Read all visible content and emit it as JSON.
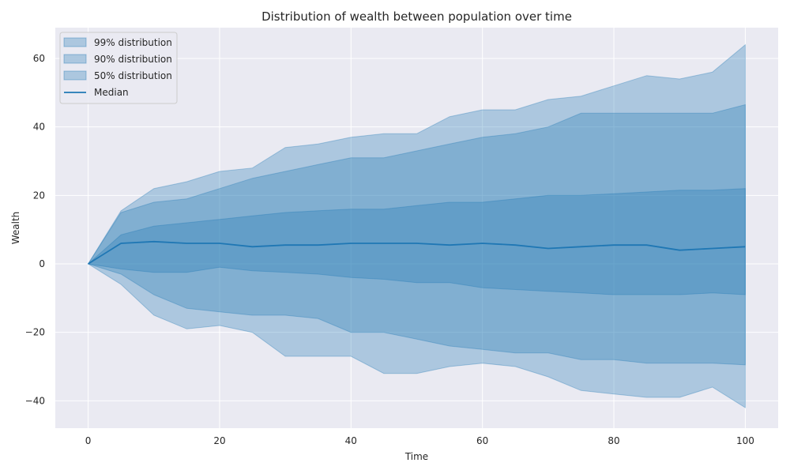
{
  "chart_data": {
    "type": "area",
    "title": "Distribution of wealth between population over time",
    "xlabel": "Time",
    "ylabel": "Wealth",
    "xlim": [
      -5,
      105
    ],
    "ylim": [
      -48,
      69
    ],
    "xticks": [
      0,
      20,
      40,
      60,
      80,
      100
    ],
    "yticks": [
      -40,
      -20,
      0,
      20,
      40,
      60
    ],
    "ytick_labels": [
      "−40",
      "−20",
      "0",
      "20",
      "40",
      "60"
    ],
    "grid": true,
    "legend_position": "top-left",
    "colors": {
      "plot_background": "#eaeaf2",
      "grid": "#ffffff",
      "band": "#1f77b4",
      "median": "#1f77b4",
      "band_opacity": 0.3
    },
    "x": [
      0,
      5,
      10,
      15,
      20,
      25,
      30,
      35,
      40,
      45,
      50,
      55,
      60,
      65,
      70,
      75,
      80,
      85,
      90,
      95,
      100
    ],
    "series": [
      {
        "name": "99% distribution",
        "upper": [
          0,
          15.5,
          22,
          24,
          27,
          28,
          34,
          35,
          37,
          38,
          38,
          43,
          45,
          45,
          48,
          49,
          52,
          55,
          54,
          56,
          64
        ],
        "lower": [
          0,
          -6,
          -15,
          -19,
          -18,
          -20,
          -27,
          -27,
          -27,
          -32,
          -32,
          -30,
          -29,
          -30,
          -33,
          -37,
          -38,
          -39,
          -39,
          -36,
          -42
        ]
      },
      {
        "name": "90% distribution",
        "upper": [
          0,
          15,
          18,
          19,
          22,
          25,
          27,
          29,
          31,
          31,
          33,
          35,
          37,
          38,
          40,
          44,
          44,
          44,
          44,
          44,
          46.5
        ],
        "lower": [
          0,
          -3,
          -9,
          -13,
          -14,
          -15,
          -15,
          -16,
          -20,
          -20,
          -22,
          -24,
          -25,
          -26,
          -26,
          -28,
          -28,
          -29,
          -29,
          -29,
          -29.5
        ]
      },
      {
        "name": "50% distribution",
        "upper": [
          0,
          8.5,
          11,
          12,
          13,
          14,
          15,
          15.5,
          16,
          16,
          17,
          18,
          18,
          19,
          20,
          20,
          20.5,
          21,
          21.5,
          21.5,
          22
        ],
        "lower": [
          0,
          -1.5,
          -2.5,
          -2.5,
          -1,
          -2,
          -2.5,
          -3,
          -4,
          -4.5,
          -5.5,
          -5.5,
          -7,
          -7.5,
          -8,
          -8.5,
          -9,
          -9,
          -9,
          -8.5,
          -9
        ]
      },
      {
        "name": "Median",
        "values": [
          0,
          6,
          6.5,
          6,
          6,
          5,
          5.5,
          5.5,
          6,
          6,
          6,
          5.5,
          6,
          5.5,
          4.5,
          5,
          5.5,
          5.5,
          4,
          4.5,
          5
        ]
      }
    ]
  }
}
